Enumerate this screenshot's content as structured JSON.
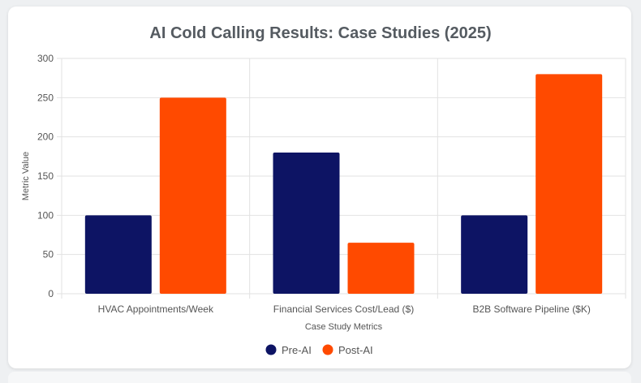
{
  "chart_data": {
    "type": "bar",
    "title": "AI Cold Calling Results: Case Studies (2025)",
    "categories": [
      "HVAC Appointments/Week",
      "Financial Services Cost/Lead ($)",
      "B2B Software Pipeline ($K)"
    ],
    "series": [
      {
        "name": "Pre-AI",
        "values": [
          100,
          180,
          100
        ],
        "color": "#0d1464"
      },
      {
        "name": "Post-AI",
        "values": [
          250,
          65,
          280
        ],
        "color": "#ff4a00"
      }
    ],
    "xlabel": "Case Study Metrics",
    "ylabel": "Metric Value",
    "ylim": [
      0,
      300
    ],
    "yticks": [
      0,
      50,
      100,
      150,
      200,
      250,
      300
    ],
    "grid": true,
    "legend_position": "bottom"
  }
}
